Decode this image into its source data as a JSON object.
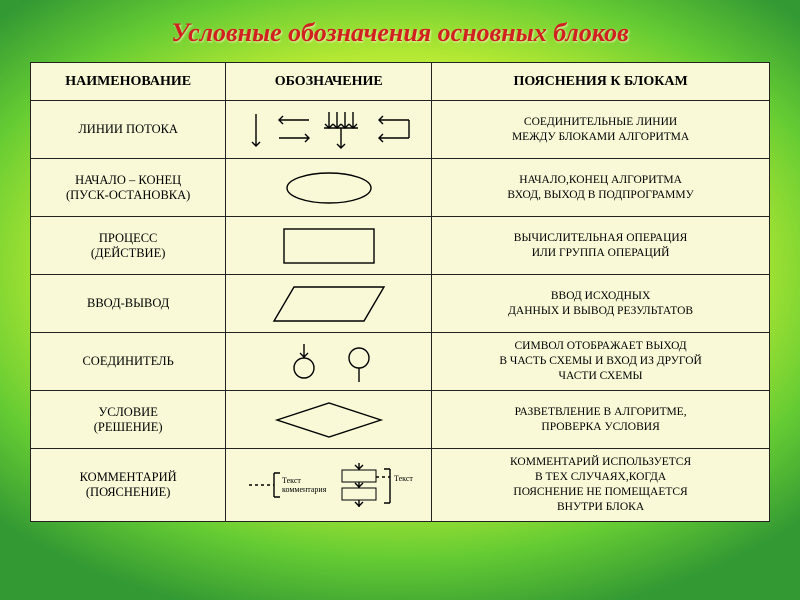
{
  "title": "Условные обозначения основных блоков",
  "background": {
    "gradient_inner": "#f7ff9e",
    "gradient_outer": "#339933"
  },
  "table": {
    "header_bg": "#f9f9d8",
    "cell_bg": "#f9f9d8",
    "border_color": "#222222",
    "stroke_color": "#000000",
    "columns": [
      "НАИМЕНОВАНИЕ",
      "ОБОЗНАЧЕНИЕ",
      "ПОЯСНЕНИЯ К БЛОКАМ"
    ],
    "rows": [
      {
        "name": "ЛИНИИ ПОТОКА",
        "symbol_type": "flow-lines",
        "explanation": "СОЕДИНИТЕЛЬНЫЕ ЛИНИИ МЕЖДУ БЛОКАМИ АЛГОРИТМА"
      },
      {
        "name": "НАЧАЛО – КОНЕЦ (ПУСК-ОСТАНОВКА)",
        "symbol_type": "terminator",
        "explanation": "НАЧАЛО,КОНЕЦ АЛГОРИТМА ВХОД, ВЫХОД В ПОДПРОГРАММУ"
      },
      {
        "name": "ПРОЦЕСС (ДЕЙСТВИЕ)",
        "symbol_type": "process",
        "explanation": "ВЫЧИСЛИТЕЛЬНАЯ ОПЕРАЦИЯ ИЛИ ГРУППА ОПЕРАЦИЙ"
      },
      {
        "name": "ВВОД-ВЫВОД",
        "symbol_type": "io",
        "explanation": "ВВОД ИСХОДНЫХ ДАННЫХ И ВЫВОД РЕЗУЛЬТАТОВ"
      },
      {
        "name": "СОЕДИНИТЕЛЬ",
        "symbol_type": "connector",
        "explanation": "СИМВОЛ ОТОБРАЖАЕТ ВЫХОД В ЧАСТЬ СХЕМЫ И ВХОД ИЗ ДРУГОЙ ЧАСТИ СХЕМЫ"
      },
      {
        "name": "УСЛОВИЕ (РЕШЕНИЕ)",
        "symbol_type": "decision",
        "explanation": "РАЗВЕТВЛЕНИЕ В АЛГОРИТМЕ, ПРОВЕРКА УСЛОВИЯ"
      },
      {
        "name": "КОММЕНТАРИЙ (ПОЯСНЕНИЕ)",
        "symbol_type": "comment",
        "comment_label_left": "Текст комментария",
        "comment_label_right": "Текст",
        "explanation": "КОММЕНТАРИЙ ИСПОЛЬЗУЕТСЯ В ТЕХ СЛУЧАЯХ,КОГДА ПОЯСНЕНИЕ НЕ ПОМЕЩАЕТСЯ ВНУТРИ БЛОКА"
      }
    ]
  },
  "symbol_styles": {
    "stroke": "#000000",
    "stroke_width": 1.4,
    "fill": "none",
    "text_fontsize": 8
  }
}
